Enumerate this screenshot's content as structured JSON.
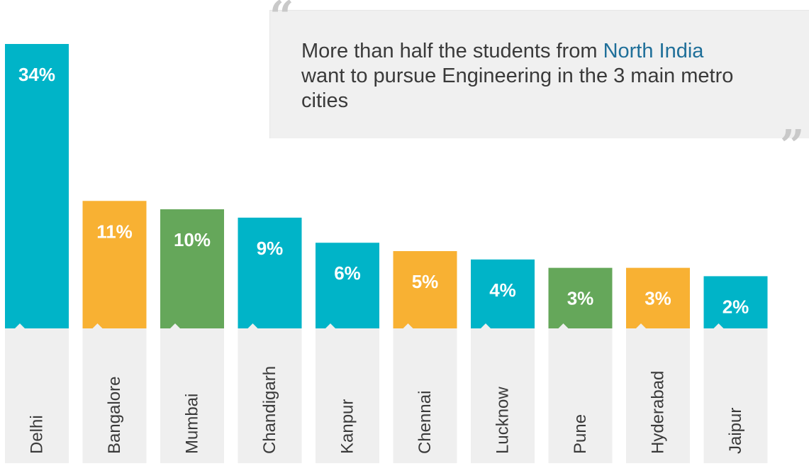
{
  "callout": {
    "text_before": "More than half the students from ",
    "highlight": "North India",
    "text_after": " want to pursue Engineering in the 3 main metro cities"
  },
  "colors": {
    "teal": "#00b4c8",
    "orange": "#f8b133",
    "green": "#65a75a",
    "label_bg": "#efefef",
    "label_text": "#3a3a3a",
    "highlight": "#1f6f99"
  },
  "chart_data": {
    "type": "bar",
    "categories": [
      "Delhi",
      "Bangalore",
      "Mumbai",
      "Chandigarh",
      "Kanpur",
      "Chennai",
      "Lucknow",
      "Pune",
      "Hyderabad",
      "Jaipur"
    ],
    "values": [
      34,
      11,
      10,
      9,
      6,
      5,
      4,
      3,
      3,
      2
    ],
    "value_labels": [
      "34%",
      "11%",
      "10%",
      "9%",
      "6%",
      "5%",
      "4%",
      "3%",
      "3%",
      "2%"
    ],
    "bar_colors": [
      "teal",
      "orange",
      "green",
      "teal",
      "teal",
      "orange",
      "teal",
      "green",
      "orange",
      "teal"
    ],
    "unit": "%"
  }
}
